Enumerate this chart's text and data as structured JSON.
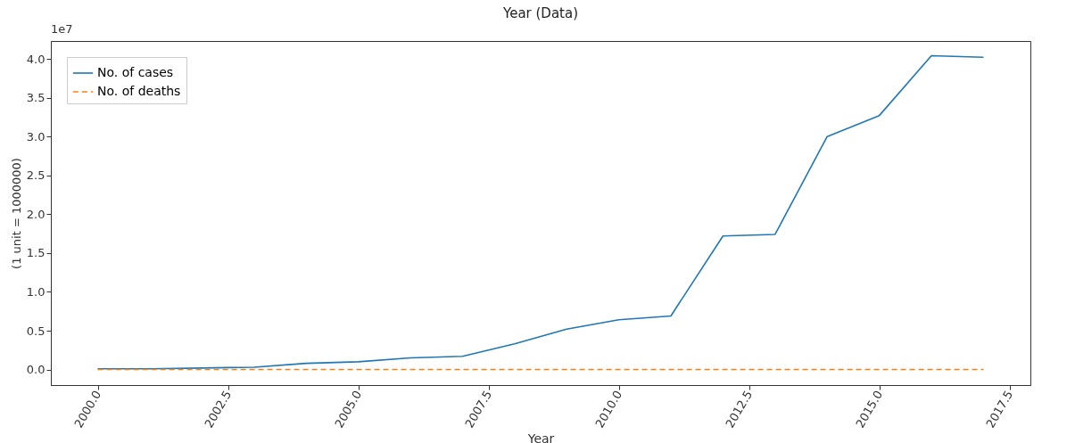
{
  "chart_data": {
    "type": "line",
    "title": "Year (Data)",
    "xlabel": "Year",
    "ylabel": "(1 unit = 1000000)",
    "annotations": [
      "1e7"
    ],
    "x": [
      2000,
      2001,
      2002,
      2003,
      2004,
      2005,
      2006,
      2007,
      2008,
      2009,
      2010,
      2011,
      2012,
      2013,
      2014,
      2015,
      2016,
      2017
    ],
    "series": [
      {
        "name": "No. of cases",
        "color": "#1f77b4",
        "line_style": "solid",
        "values": [
          0.01,
          0.01,
          0.02,
          0.03,
          0.08,
          0.1,
          0.15,
          0.17,
          0.33,
          0.52,
          0.64,
          0.69,
          1.72,
          1.74,
          3.0,
          3.27,
          4.04,
          4.02
        ]
      },
      {
        "name": "No. of deaths",
        "color": "#ff7f0e",
        "line_style": "dashed",
        "values": [
          0,
          0,
          0,
          0,
          0,
          0,
          0,
          0,
          0,
          0,
          0,
          0,
          0,
          0,
          0,
          0,
          0,
          0
        ]
      }
    ],
    "xlim": [
      1999.1,
      2017.9
    ],
    "ylim": [
      -0.2,
      4.23
    ],
    "xticks": [
      {
        "value": 2000,
        "label": "2000.0"
      },
      {
        "value": 2002.5,
        "label": "2002.5"
      },
      {
        "value": 2005,
        "label": "2005.0"
      },
      {
        "value": 2007.5,
        "label": "2007.5"
      },
      {
        "value": 2010,
        "label": "2010.0"
      },
      {
        "value": 2012.5,
        "label": "2012.5"
      },
      {
        "value": 2015,
        "label": "2015.0"
      },
      {
        "value": 2017.5,
        "label": "2017.5"
      }
    ],
    "yticks": [
      {
        "value": 0,
        "label": "0.0"
      },
      0.5,
      {
        "value": 1,
        "label": "1.0"
      },
      1.5,
      {
        "value": 2,
        "label": "2.0"
      },
      2.5,
      {
        "value": 3,
        "label": "3.0"
      },
      3.5,
      {
        "value": 4,
        "label": "4.0"
      }
    ],
    "grid": false,
    "legend": "top left"
  }
}
